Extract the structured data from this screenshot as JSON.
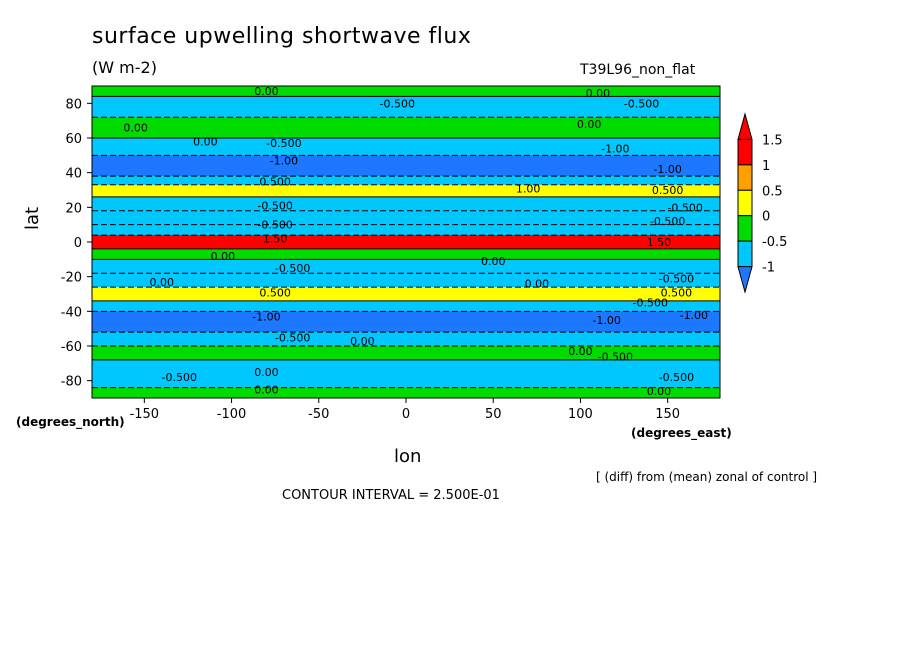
{
  "chart_data": {
    "type": "heatmap",
    "title": "surface upwelling shortwave flux",
    "units": "(W m-2)",
    "run_label": "T39L96_non_flat",
    "xlabel": "lon",
    "ylabel": "lat",
    "x_units_label": "(degrees_east)",
    "y_units_label": "(degrees_north)",
    "xlim": [
      -180,
      180
    ],
    "ylim": [
      -90,
      90
    ],
    "x_ticks": [
      -150,
      -100,
      -50,
      0,
      50,
      100,
      150
    ],
    "y_ticks": [
      -80,
      -60,
      -40,
      -20,
      0,
      20,
      40,
      60,
      80
    ],
    "x_tick_labels": [
      "-150",
      "-100",
      "-50",
      "0",
      "50",
      "100",
      "150"
    ],
    "y_tick_labels": [
      "-80",
      "-60",
      "-40",
      "-20",
      "0",
      "20",
      "40",
      "60",
      "80"
    ],
    "colorbar": {
      "levels": [
        -1,
        -0.5,
        0,
        0.5,
        1,
        1.5
      ],
      "labels": [
        "-1",
        "-0.5",
        "0",
        "0.5",
        "1",
        "1.5"
      ],
      "colors": [
        "#1e78ff",
        "#00c8ff",
        "#00dc00",
        "#ffff00",
        "#ffa000",
        "#ff0000"
      ],
      "extend_low_color": "#1e78ff",
      "extend_high_color": "#ff0000"
    },
    "latitude_bands": [
      {
        "lat": [
          84,
          90
        ],
        "value": 0.0
      },
      {
        "lat": [
          72,
          84
        ],
        "value": -0.5
      },
      {
        "lat": [
          60,
          72
        ],
        "value": 0.0
      },
      {
        "lat": [
          50,
          60
        ],
        "value": -0.5
      },
      {
        "lat": [
          38,
          50
        ],
        "value": -1.0
      },
      {
        "lat": [
          33,
          38
        ],
        "value": -0.5
      },
      {
        "lat": [
          26,
          33
        ],
        "value": 0.5
      },
      {
        "lat": [
          18,
          26
        ],
        "value": -0.5
      },
      {
        "lat": [
          10,
          18
        ],
        "value": -0.5
      },
      {
        "lat": [
          4,
          10
        ],
        "value": -0.5
      },
      {
        "lat": [
          -4,
          4
        ],
        "value": 1.5
      },
      {
        "lat": [
          -10,
          -4
        ],
        "value": 0.0
      },
      {
        "lat": [
          -18,
          -10
        ],
        "value": -0.5
      },
      {
        "lat": [
          -26,
          -18
        ],
        "value": -0.5
      },
      {
        "lat": [
          -34,
          -26
        ],
        "value": 0.5
      },
      {
        "lat": [
          -40,
          -34
        ],
        "value": -0.5
      },
      {
        "lat": [
          -52,
          -40
        ],
        "value": -1.0
      },
      {
        "lat": [
          -60,
          -52
        ],
        "value": -0.5
      },
      {
        "lat": [
          -68,
          -60
        ],
        "value": 0.0
      },
      {
        "lat": [
          -84,
          -68
        ],
        "value": -0.5
      },
      {
        "lat": [
          -90,
          -84
        ],
        "value": 0.0
      }
    ],
    "contour_labels": [
      {
        "lon": -80,
        "lat": 87,
        "text": "0.00"
      },
      {
        "lon": 110,
        "lat": 86,
        "text": "0.00"
      },
      {
        "lon": -5,
        "lat": 80,
        "text": "-0.500"
      },
      {
        "lon": 135,
        "lat": 80,
        "text": "-0.500"
      },
      {
        "lon": -155,
        "lat": 66,
        "text": "0.00"
      },
      {
        "lon": 105,
        "lat": 68,
        "text": "0.00"
      },
      {
        "lon": -115,
        "lat": 58,
        "text": "0.00"
      },
      {
        "lon": -70,
        "lat": 57,
        "text": "-0.500"
      },
      {
        "lon": 120,
        "lat": 54,
        "text": "-1.00"
      },
      {
        "lon": -70,
        "lat": 47,
        "text": "-1.00"
      },
      {
        "lon": 150,
        "lat": 42,
        "text": "-1.00"
      },
      {
        "lon": 70,
        "lat": 31,
        "text": "1.00"
      },
      {
        "lon": -75,
        "lat": 35,
        "text": "0.500"
      },
      {
        "lon": 150,
        "lat": 30,
        "text": "0.500"
      },
      {
        "lon": -75,
        "lat": 21,
        "text": "-0.500"
      },
      {
        "lon": 160,
        "lat": 20,
        "text": "-0.500"
      },
      {
        "lon": -75,
        "lat": 10,
        "text": "-0.500"
      },
      {
        "lon": 150,
        "lat": 12,
        "text": "-0.500"
      },
      {
        "lon": -75,
        "lat": 2,
        "text": "1.50"
      },
      {
        "lon": 145,
        "lat": 0,
        "text": "1.50"
      },
      {
        "lon": -105,
        "lat": -8,
        "text": "0.00"
      },
      {
        "lon": 50,
        "lat": -11,
        "text": "0.00"
      },
      {
        "lon": -65,
        "lat": -15,
        "text": "-0.500"
      },
      {
        "lon": -140,
        "lat": -23,
        "text": "0.00"
      },
      {
        "lon": 75,
        "lat": -24,
        "text": "0.00"
      },
      {
        "lon": 155,
        "lat": -21,
        "text": "-0.500"
      },
      {
        "lon": -75,
        "lat": -29,
        "text": "0.500"
      },
      {
        "lon": 155,
        "lat": -29,
        "text": "0.500"
      },
      {
        "lon": 140,
        "lat": -35,
        "text": "-0.500"
      },
      {
        "lon": -80,
        "lat": -43,
        "text": "-1.00"
      },
      {
        "lon": 115,
        "lat": -45,
        "text": "-1.00"
      },
      {
        "lon": 165,
        "lat": -42,
        "text": "-1.00"
      },
      {
        "lon": -65,
        "lat": -55,
        "text": "-0.500"
      },
      {
        "lon": -25,
        "lat": -57,
        "text": "0.00"
      },
      {
        "lon": 100,
        "lat": -63,
        "text": "0.00"
      },
      {
        "lon": 120,
        "lat": -66,
        "text": "-0.500"
      },
      {
        "lon": -130,
        "lat": -78,
        "text": "-0.500"
      },
      {
        "lon": -80,
        "lat": -75,
        "text": "0.00"
      },
      {
        "lon": 155,
        "lat": -78,
        "text": "-0.500"
      },
      {
        "lon": -80,
        "lat": -85,
        "text": "0.00"
      },
      {
        "lon": 145,
        "lat": -86,
        "text": "0.00"
      }
    ]
  },
  "footer": {
    "diff_note": "[ (diff) from (mean) zonal of control ]",
    "contour_interval": "CONTOUR INTERVAL = 2.500E-01"
  }
}
